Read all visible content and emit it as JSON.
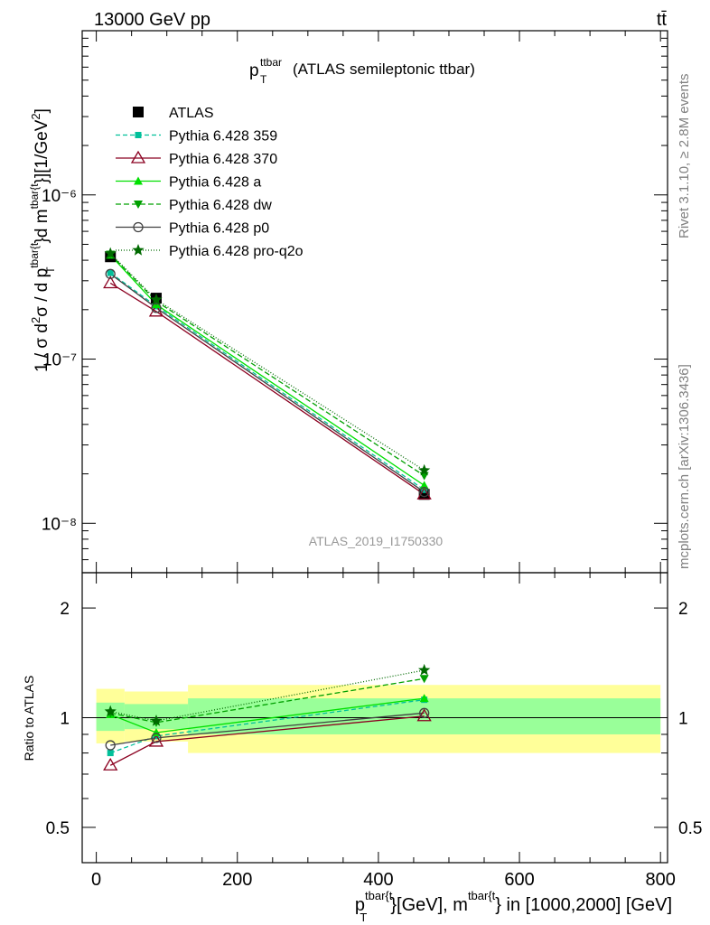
{
  "header": {
    "left": "13000 GeV pp",
    "right": "tt̄"
  },
  "side_labels": {
    "rivet": "Rivet 3.1.10, ≥ 2.8M events",
    "mcplots": "mcplots.cern.ch [arXiv:1306.3436]"
  },
  "chart_data": [
    {
      "type": "line",
      "title": "(ATLAS semileptonic ttbar)",
      "title_main": "p",
      "title_sup": "ttbar",
      "title_sub": "T",
      "watermark": "ATLAS_2019_I1750330",
      "ylabel": "1 / σ d²σ / d p_T^{tbar{t}}d m^{tbar{t}}][1/GeV²]",
      "yscale": "log",
      "ylim": [
        5e-09,
        1e-05
      ],
      "xlim": [
        -20,
        810
      ],
      "y_tick_labels": [
        "10⁻⁸",
        "10⁻⁷",
        "10⁻⁶"
      ],
      "legend_position": "top-left",
      "x": [
        20,
        85,
        465
      ],
      "series": [
        {
          "name": "ATLAS",
          "color": "#000000",
          "marker": "square",
          "dash": "none",
          "values": [
            4.2e-07,
            2.35e-07,
            1.5e-08
          ]
        },
        {
          "name": "Pythia 6.428 359",
          "color": "#00c09a",
          "marker": "small-square",
          "dash": "5,3",
          "values": [
            3.35e-07,
            2.1e-07,
            1.6e-08
          ]
        },
        {
          "name": "Pythia 6.428 370",
          "color": "#8b0020",
          "marker": "open-triangle",
          "dash": "none",
          "values": [
            2.9e-07,
            1.95e-07,
            1.5e-08
          ]
        },
        {
          "name": "Pythia 6.428 a",
          "color": "#00e000",
          "marker": "filled-triangle",
          "dash": "none",
          "values": [
            4.3e-07,
            2.15e-07,
            1.7e-08
          ]
        },
        {
          "name": "Pythia 6.428 dw",
          "color": "#00a000",
          "marker": "down-triangle",
          "dash": "6,3",
          "values": [
            4.35e-07,
            2.25e-07,
            1.95e-08
          ]
        },
        {
          "name": "Pythia 6.428 p0",
          "color": "#404040",
          "marker": "open-circle",
          "dash": "none",
          "values": [
            3.3e-07,
            2.05e-07,
            1.55e-08
          ]
        },
        {
          "name": "Pythia 6.428 pro-q2o",
          "color": "#006a00",
          "marker": "star",
          "dash": "1,2",
          "values": [
            4.4e-07,
            2.3e-07,
            2.1e-08
          ]
        }
      ]
    },
    {
      "type": "line",
      "xlabel": "p_T^{tbar{t}}[GeV], m^{tbar{t}} in [1000,2000] [GeV]",
      "ylabel": "Ratio to ATLAS",
      "yscale": "log",
      "ylim": [
        0.4,
        2.5
      ],
      "xlim": [
        -20,
        810
      ],
      "x_ticks": [
        0,
        200,
        400,
        600,
        800
      ],
      "y_ticks": [
        0.5,
        1,
        2
      ],
      "uncertainty_bins": [
        {
          "x0": 0,
          "x1": 40,
          "yellow": [
            0.85,
            1.2
          ],
          "green": [
            0.92,
            1.1
          ]
        },
        {
          "x0": 40,
          "x1": 130,
          "yellow": [
            0.86,
            1.18
          ],
          "green": [
            0.93,
            1.09
          ]
        },
        {
          "x0": 130,
          "x1": 800,
          "yellow": [
            0.8,
            1.23
          ],
          "green": [
            0.9,
            1.13
          ]
        }
      ],
      "x": [
        20,
        85,
        465
      ],
      "series": [
        {
          "name": "Pythia 6.428 359",
          "values": [
            0.8,
            0.89,
            1.12
          ]
        },
        {
          "name": "Pythia 6.428 370",
          "values": [
            0.74,
            0.86,
            1.01
          ]
        },
        {
          "name": "Pythia 6.428 a",
          "values": [
            1.02,
            0.91,
            1.13
          ]
        },
        {
          "name": "Pythia 6.428 dw",
          "values": [
            1.03,
            0.97,
            1.28
          ]
        },
        {
          "name": "Pythia 6.428 p0",
          "values": [
            0.84,
            0.88,
            1.03
          ]
        },
        {
          "name": "Pythia 6.428 pro-q2o",
          "values": [
            1.04,
            0.98,
            1.35
          ]
        }
      ]
    }
  ]
}
